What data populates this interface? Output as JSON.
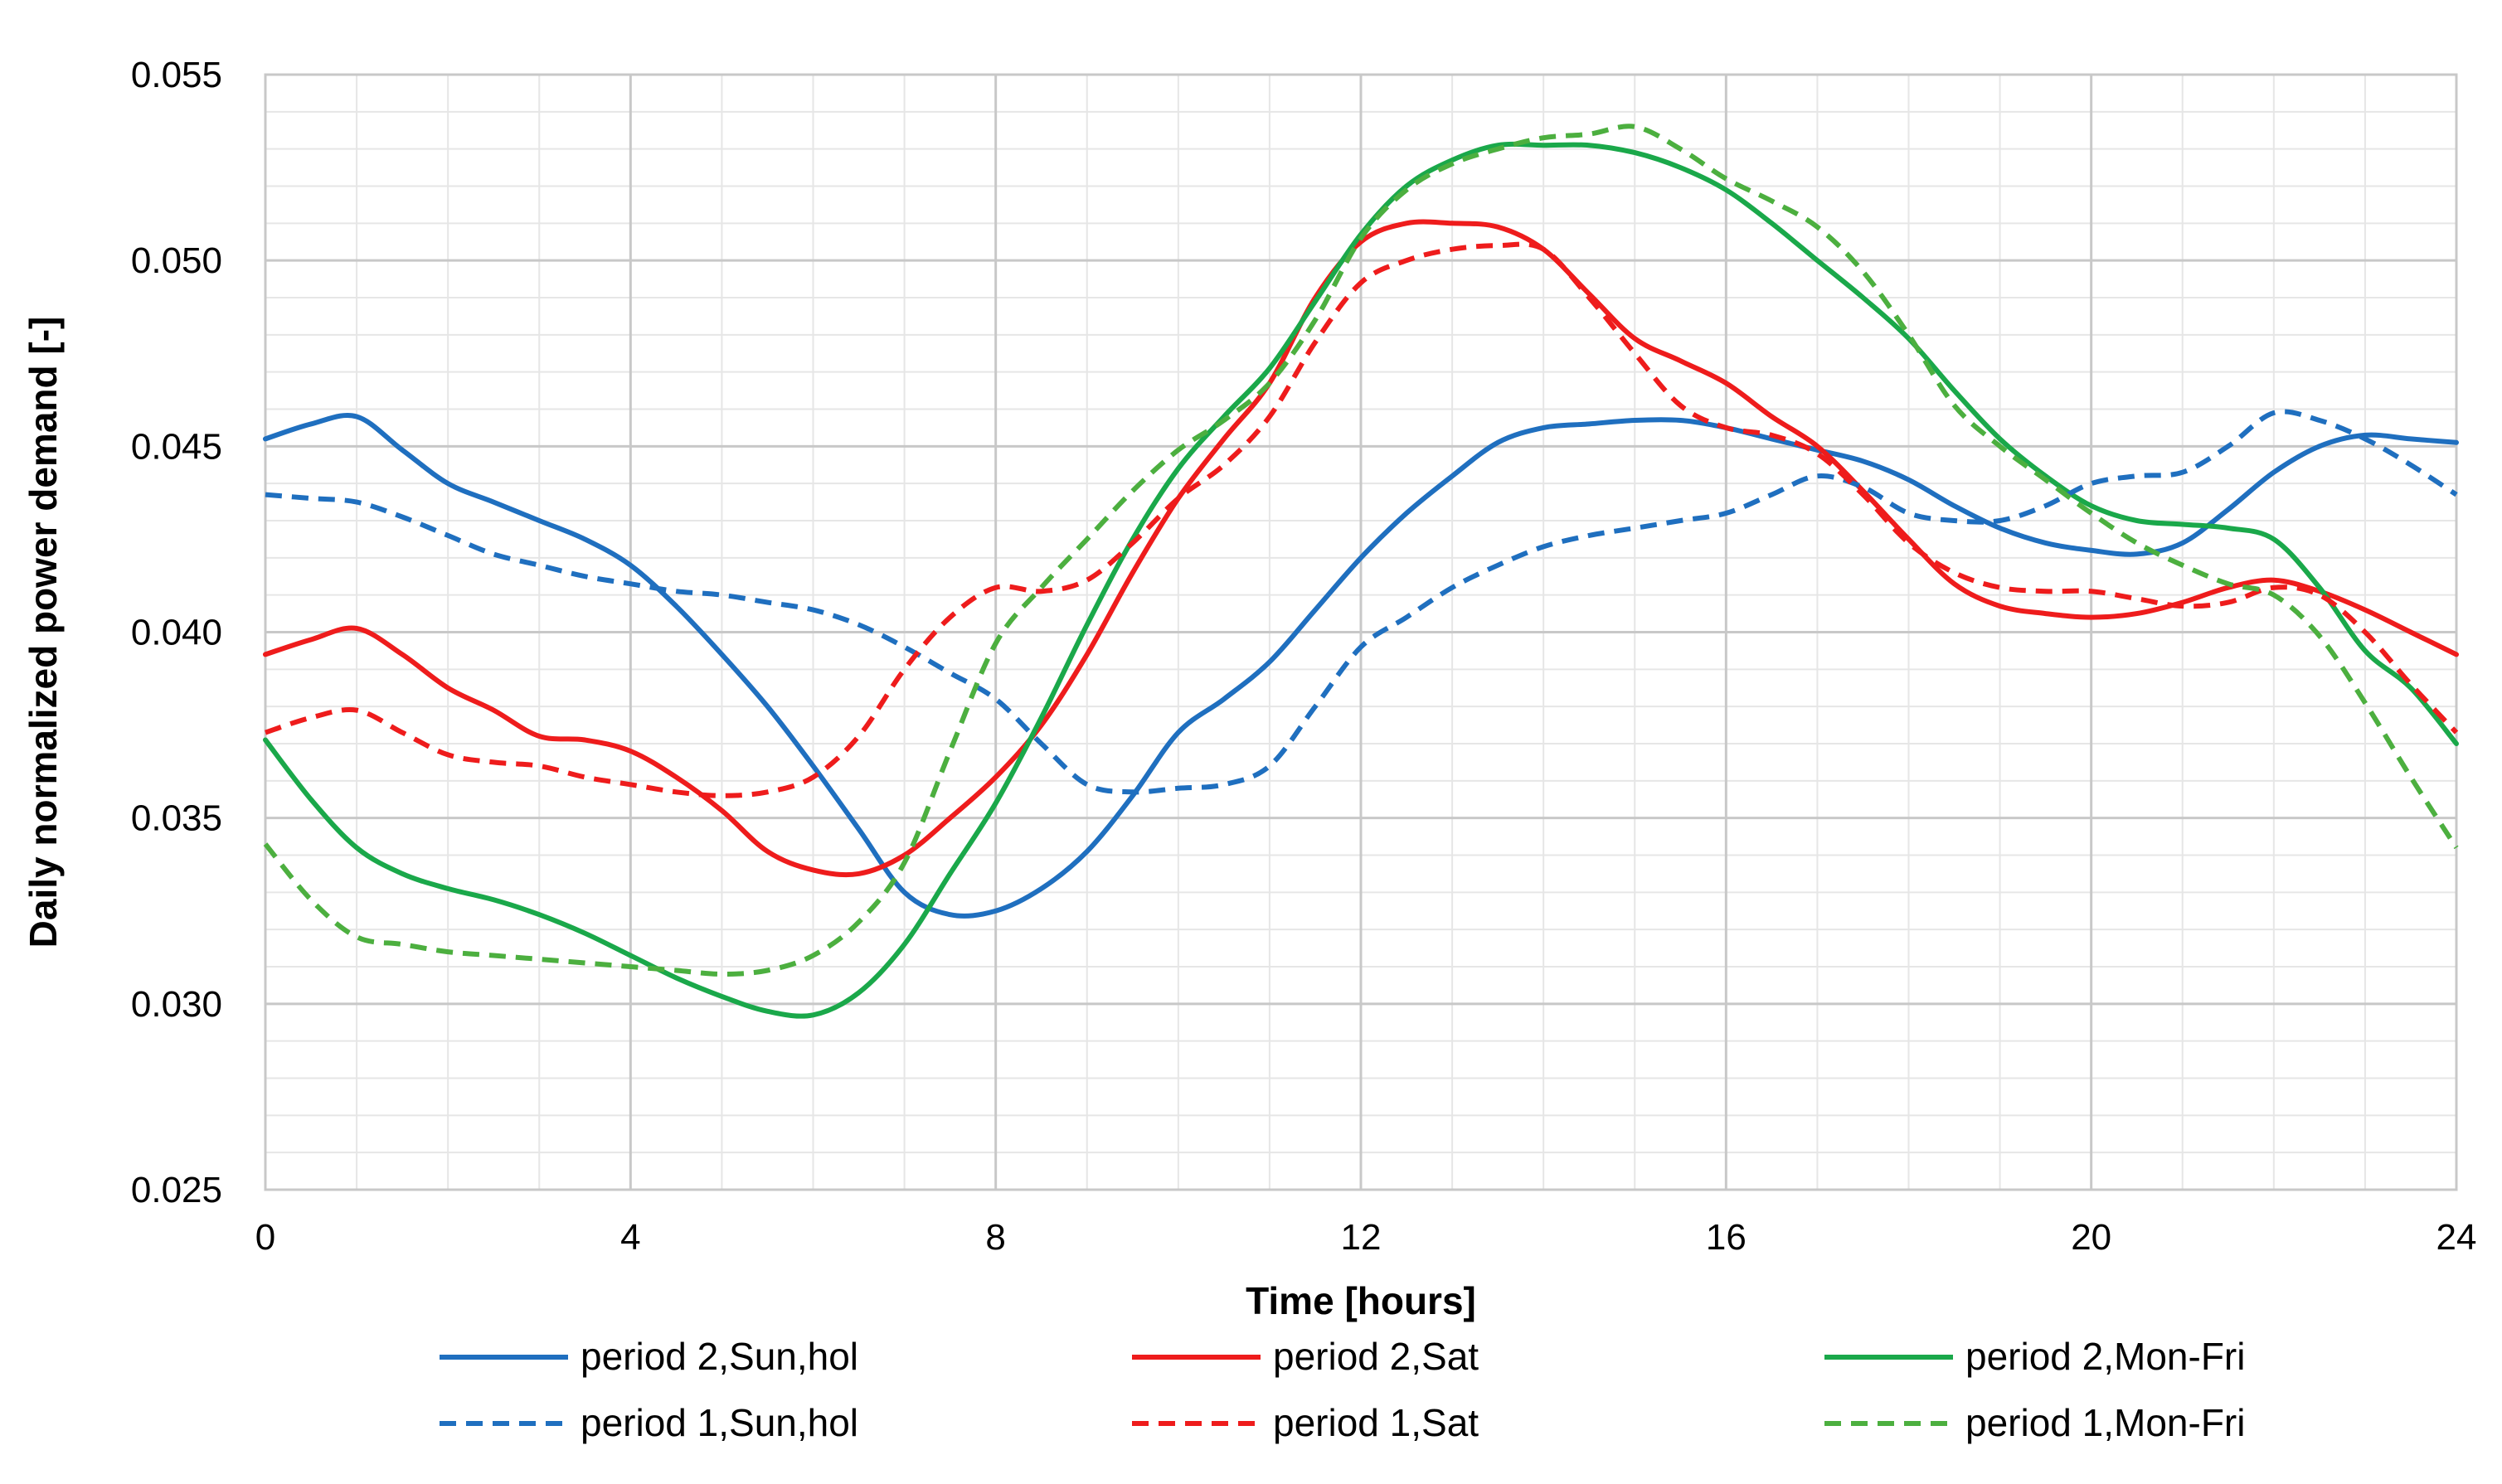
{
  "chart_data": {
    "type": "line",
    "title": "",
    "xlabel": "Time [hours]",
    "ylabel": "Daily normalized power demand [-]",
    "xlim": [
      0,
      24
    ],
    "ylim": [
      0.025,
      0.055
    ],
    "grid": true,
    "legend_position": "bottom",
    "x_ticks": [
      0,
      4,
      8,
      12,
      16,
      20,
      24
    ],
    "x_tick_labels": [
      "0",
      "4",
      "8",
      "12",
      "16",
      "20",
      "24"
    ],
    "y_ticks": [
      0.025,
      0.03,
      0.035,
      0.04,
      0.045,
      0.05,
      0.055
    ],
    "y_tick_labels": [
      "0.025",
      "0.030",
      "0.035",
      "0.040",
      "0.045",
      "0.050",
      "0.055"
    ],
    "x": [
      0,
      0.5,
      1,
      1.5,
      2,
      2.5,
      3,
      3.5,
      4,
      4.5,
      5,
      5.5,
      6,
      6.5,
      7,
      7.5,
      8,
      8.5,
      9,
      9.5,
      10,
      10.5,
      11,
      11.5,
      12,
      12.5,
      13,
      13.5,
      14,
      14.5,
      15,
      15.5,
      16,
      16.5,
      17,
      17.5,
      18,
      18.5,
      19,
      19.5,
      20,
      20.5,
      21,
      21.5,
      22,
      22.5,
      23,
      23.5,
      24
    ],
    "series": [
      {
        "name": "period 2,Sun,hol",
        "color": "#1f6fbf",
        "dashed": false,
        "values": [
          0.0452,
          0.0456,
          0.0458,
          0.0449,
          0.044,
          0.0435,
          0.043,
          0.0425,
          0.0418,
          0.0407,
          0.0394,
          0.038,
          0.0364,
          0.0347,
          0.033,
          0.0324,
          0.0325,
          0.0331,
          0.0341,
          0.0356,
          0.0373,
          0.0382,
          0.0392,
          0.0406,
          0.042,
          0.0432,
          0.0442,
          0.0451,
          0.0455,
          0.0456,
          0.0457,
          0.0457,
          0.0455,
          0.0452,
          0.0449,
          0.0446,
          0.0441,
          0.0434,
          0.0428,
          0.0424,
          0.0422,
          0.0421,
          0.0424,
          0.0433,
          0.0443,
          0.045,
          0.0453,
          0.0452,
          0.0451
        ]
      },
      {
        "name": "period 2,Sat",
        "color": "#ee1c1c",
        "dashed": false,
        "values": [
          0.0394,
          0.0398,
          0.0401,
          0.0394,
          0.0385,
          0.0379,
          0.0372,
          0.0371,
          0.0368,
          0.0361,
          0.0352,
          0.0341,
          0.0336,
          0.0335,
          0.034,
          0.035,
          0.0361,
          0.0375,
          0.0394,
          0.0416,
          0.0436,
          0.0452,
          0.0467,
          0.049,
          0.0505,
          0.051,
          0.051,
          0.0509,
          0.0503,
          0.0491,
          0.0479,
          0.0473,
          0.0467,
          0.0458,
          0.045,
          0.0438,
          0.0425,
          0.0413,
          0.0407,
          0.0405,
          0.0404,
          0.0405,
          0.0408,
          0.0412,
          0.0414,
          0.0411,
          0.0406,
          0.04,
          0.0394
        ]
      },
      {
        "name": "period 2,Mon-Fri",
        "color": "#1aa84a",
        "dashed": false,
        "values": [
          0.0371,
          0.0355,
          0.0342,
          0.0335,
          0.0331,
          0.0328,
          0.0324,
          0.0319,
          0.0313,
          0.0307,
          0.0302,
          0.0298,
          0.0297,
          0.0303,
          0.0316,
          0.0335,
          0.0354,
          0.0377,
          0.0402,
          0.0425,
          0.0444,
          0.0458,
          0.0471,
          0.0489,
          0.0507,
          0.052,
          0.0527,
          0.0531,
          0.0531,
          0.0531,
          0.0529,
          0.0525,
          0.0519,
          0.051,
          0.05,
          0.049,
          0.0479,
          0.0465,
          0.0452,
          0.0442,
          0.0434,
          0.043,
          0.0429,
          0.0428,
          0.0425,
          0.0412,
          0.0395,
          0.0385,
          0.037
        ]
      },
      {
        "name": "period 1,Sun,hol",
        "color": "#1f6fbf",
        "dashed": true,
        "values": [
          0.0437,
          0.0436,
          0.0435,
          0.0431,
          0.0426,
          0.0421,
          0.0418,
          0.0415,
          0.0413,
          0.0411,
          0.041,
          0.0408,
          0.0406,
          0.0402,
          0.0396,
          0.0389,
          0.0382,
          0.037,
          0.0359,
          0.0357,
          0.0358,
          0.0359,
          0.0364,
          0.038,
          0.0396,
          0.0404,
          0.0412,
          0.0418,
          0.0423,
          0.0426,
          0.0428,
          0.043,
          0.0432,
          0.0437,
          0.0442,
          0.0439,
          0.0432,
          0.043,
          0.043,
          0.0434,
          0.044,
          0.0442,
          0.0443,
          0.045,
          0.0459,
          0.0457,
          0.0452,
          0.0445,
          0.0437
        ]
      },
      {
        "name": "period 1,Sat",
        "color": "#ee1c1c",
        "dashed": true,
        "values": [
          0.0373,
          0.0377,
          0.0379,
          0.0373,
          0.0367,
          0.0365,
          0.0364,
          0.0361,
          0.0359,
          0.0357,
          0.0356,
          0.0357,
          0.0361,
          0.0372,
          0.039,
          0.0404,
          0.0412,
          0.0411,
          0.0414,
          0.0424,
          0.0436,
          0.0445,
          0.0458,
          0.0478,
          0.0494,
          0.05,
          0.0503,
          0.0504,
          0.0503,
          0.049,
          0.0475,
          0.0461,
          0.0455,
          0.0453,
          0.0448,
          0.0437,
          0.0424,
          0.0416,
          0.0412,
          0.0411,
          0.0411,
          0.0409,
          0.0407,
          0.0408,
          0.0412,
          0.041,
          0.04,
          0.0386,
          0.0373
        ]
      },
      {
        "name": "period 1,Mon-Fri",
        "color": "#4caf3f",
        "dashed": true,
        "values": [
          0.0343,
          0.0328,
          0.0318,
          0.0316,
          0.0314,
          0.0313,
          0.0312,
          0.0311,
          0.031,
          0.0309,
          0.0308,
          0.0309,
          0.0313,
          0.0322,
          0.0338,
          0.0368,
          0.0397,
          0.0412,
          0.0425,
          0.0438,
          0.0449,
          0.0457,
          0.0467,
          0.0484,
          0.0506,
          0.0519,
          0.0526,
          0.053,
          0.0533,
          0.0534,
          0.0536,
          0.053,
          0.0522,
          0.0516,
          0.0509,
          0.0497,
          0.048,
          0.0461,
          0.045,
          0.0441,
          0.0432,
          0.0424,
          0.0418,
          0.0413,
          0.041,
          0.0399,
          0.0381,
          0.0361,
          0.0342
        ]
      }
    ],
    "legend_order": [
      0,
      1,
      2,
      3,
      4,
      5
    ]
  }
}
